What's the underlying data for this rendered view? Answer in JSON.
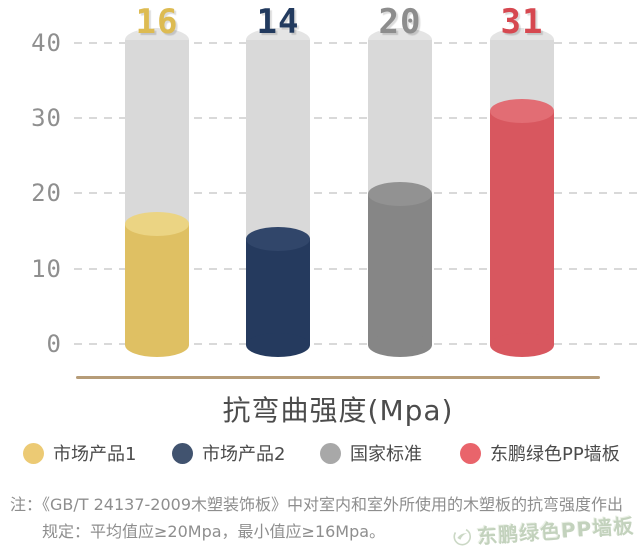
{
  "chart_data": {
    "type": "bar",
    "title": "抗弯曲强度(Mpa)",
    "categories": [
      "市场产品1",
      "市场产品2",
      "国家标准",
      "东鹏绿色PP墙板"
    ],
    "values": [
      16,
      14,
      20,
      31
    ],
    "xlabel": "",
    "ylabel": "",
    "ylim": [
      0,
      40
    ],
    "yticks": [
      "40",
      "30",
      "20",
      "10",
      "0"
    ],
    "grid": "horizontal-dashed",
    "legend_position": "bottom",
    "bar_style": "cylinder-in-gray-track",
    "bar_colors": [
      "#dfc063",
      "#253a5e",
      "#868686",
      "#d8575f"
    ],
    "bar_cap_colors": [
      "#ebd483",
      "#31466a",
      "#929292",
      "#e26d74"
    ],
    "value_label_colors": [
      "#ddbb52",
      "#223a5e",
      "#8d8d8d",
      "#d64850"
    ],
    "track_color": "#d9d9d9",
    "track_cap_color": "#e4e4e4",
    "axis_line_color": "#b69c78"
  },
  "legend": {
    "items": [
      {
        "label": "市场产品1",
        "color": "#ecca74"
      },
      {
        "label": "市场产品2",
        "color": "#41536f"
      },
      {
        "label": "国家标准",
        "color": "#a8a8a8"
      },
      {
        "label": "东鹏绿色PP墙板",
        "color": "#e9646b"
      }
    ]
  },
  "note": {
    "line1": "注：《GB/T 24137-2009木塑装饰板》中对室内和室外所使用的木塑板的抗弯强度作出",
    "line2": "规定：平均值应≥20Mpa，最小值应≥16Mpa。"
  },
  "watermark": {
    "text": "东鹏绿色PP墙板"
  }
}
